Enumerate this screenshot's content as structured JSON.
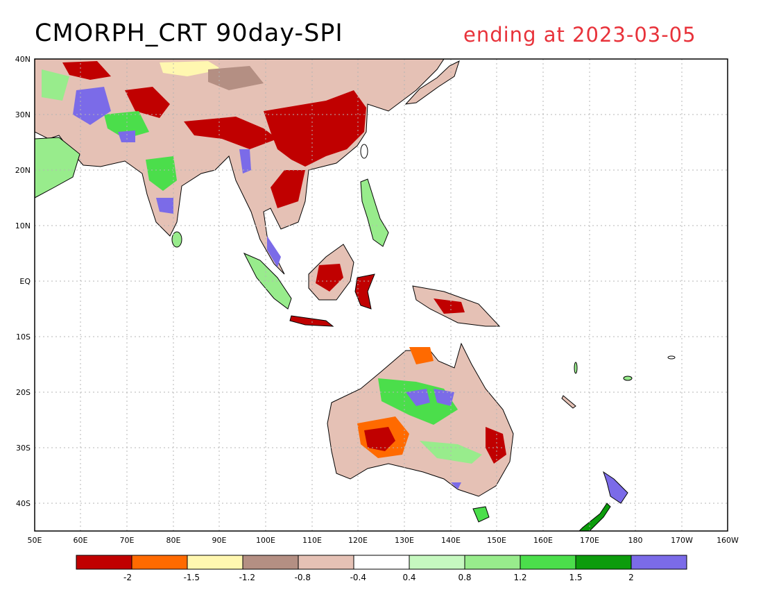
{
  "title": "CMORPH_CRT 90day-SPI",
  "subtitle": "ending at 2023-03-05",
  "lat_labels": [
    "40N",
    "30N",
    "20N",
    "10N",
    "EQ",
    "10S",
    "20S",
    "30S",
    "40S"
  ],
  "lon_labels": [
    "50E",
    "60E",
    "70E",
    "80E",
    "90E",
    "100E",
    "110E",
    "120E",
    "130E",
    "140E",
    "150E",
    "160E",
    "170E",
    "180",
    "170W",
    "160W"
  ],
  "colorbar": {
    "colors": [
      "#c00000",
      "#ff6a00",
      "#fff7b0",
      "#b48f83",
      "#e5c1b5",
      "#ffffff",
      "#c6f8c0",
      "#98ec8c",
      "#4bde4b",
      "#0c9c0c",
      "#7b6be8"
    ],
    "labels": [
      "-2",
      "-1.5",
      "-1.2",
      "-0.8",
      "-0.4",
      "0.4",
      "0.8",
      "1.2",
      "1.5",
      "2"
    ]
  }
}
